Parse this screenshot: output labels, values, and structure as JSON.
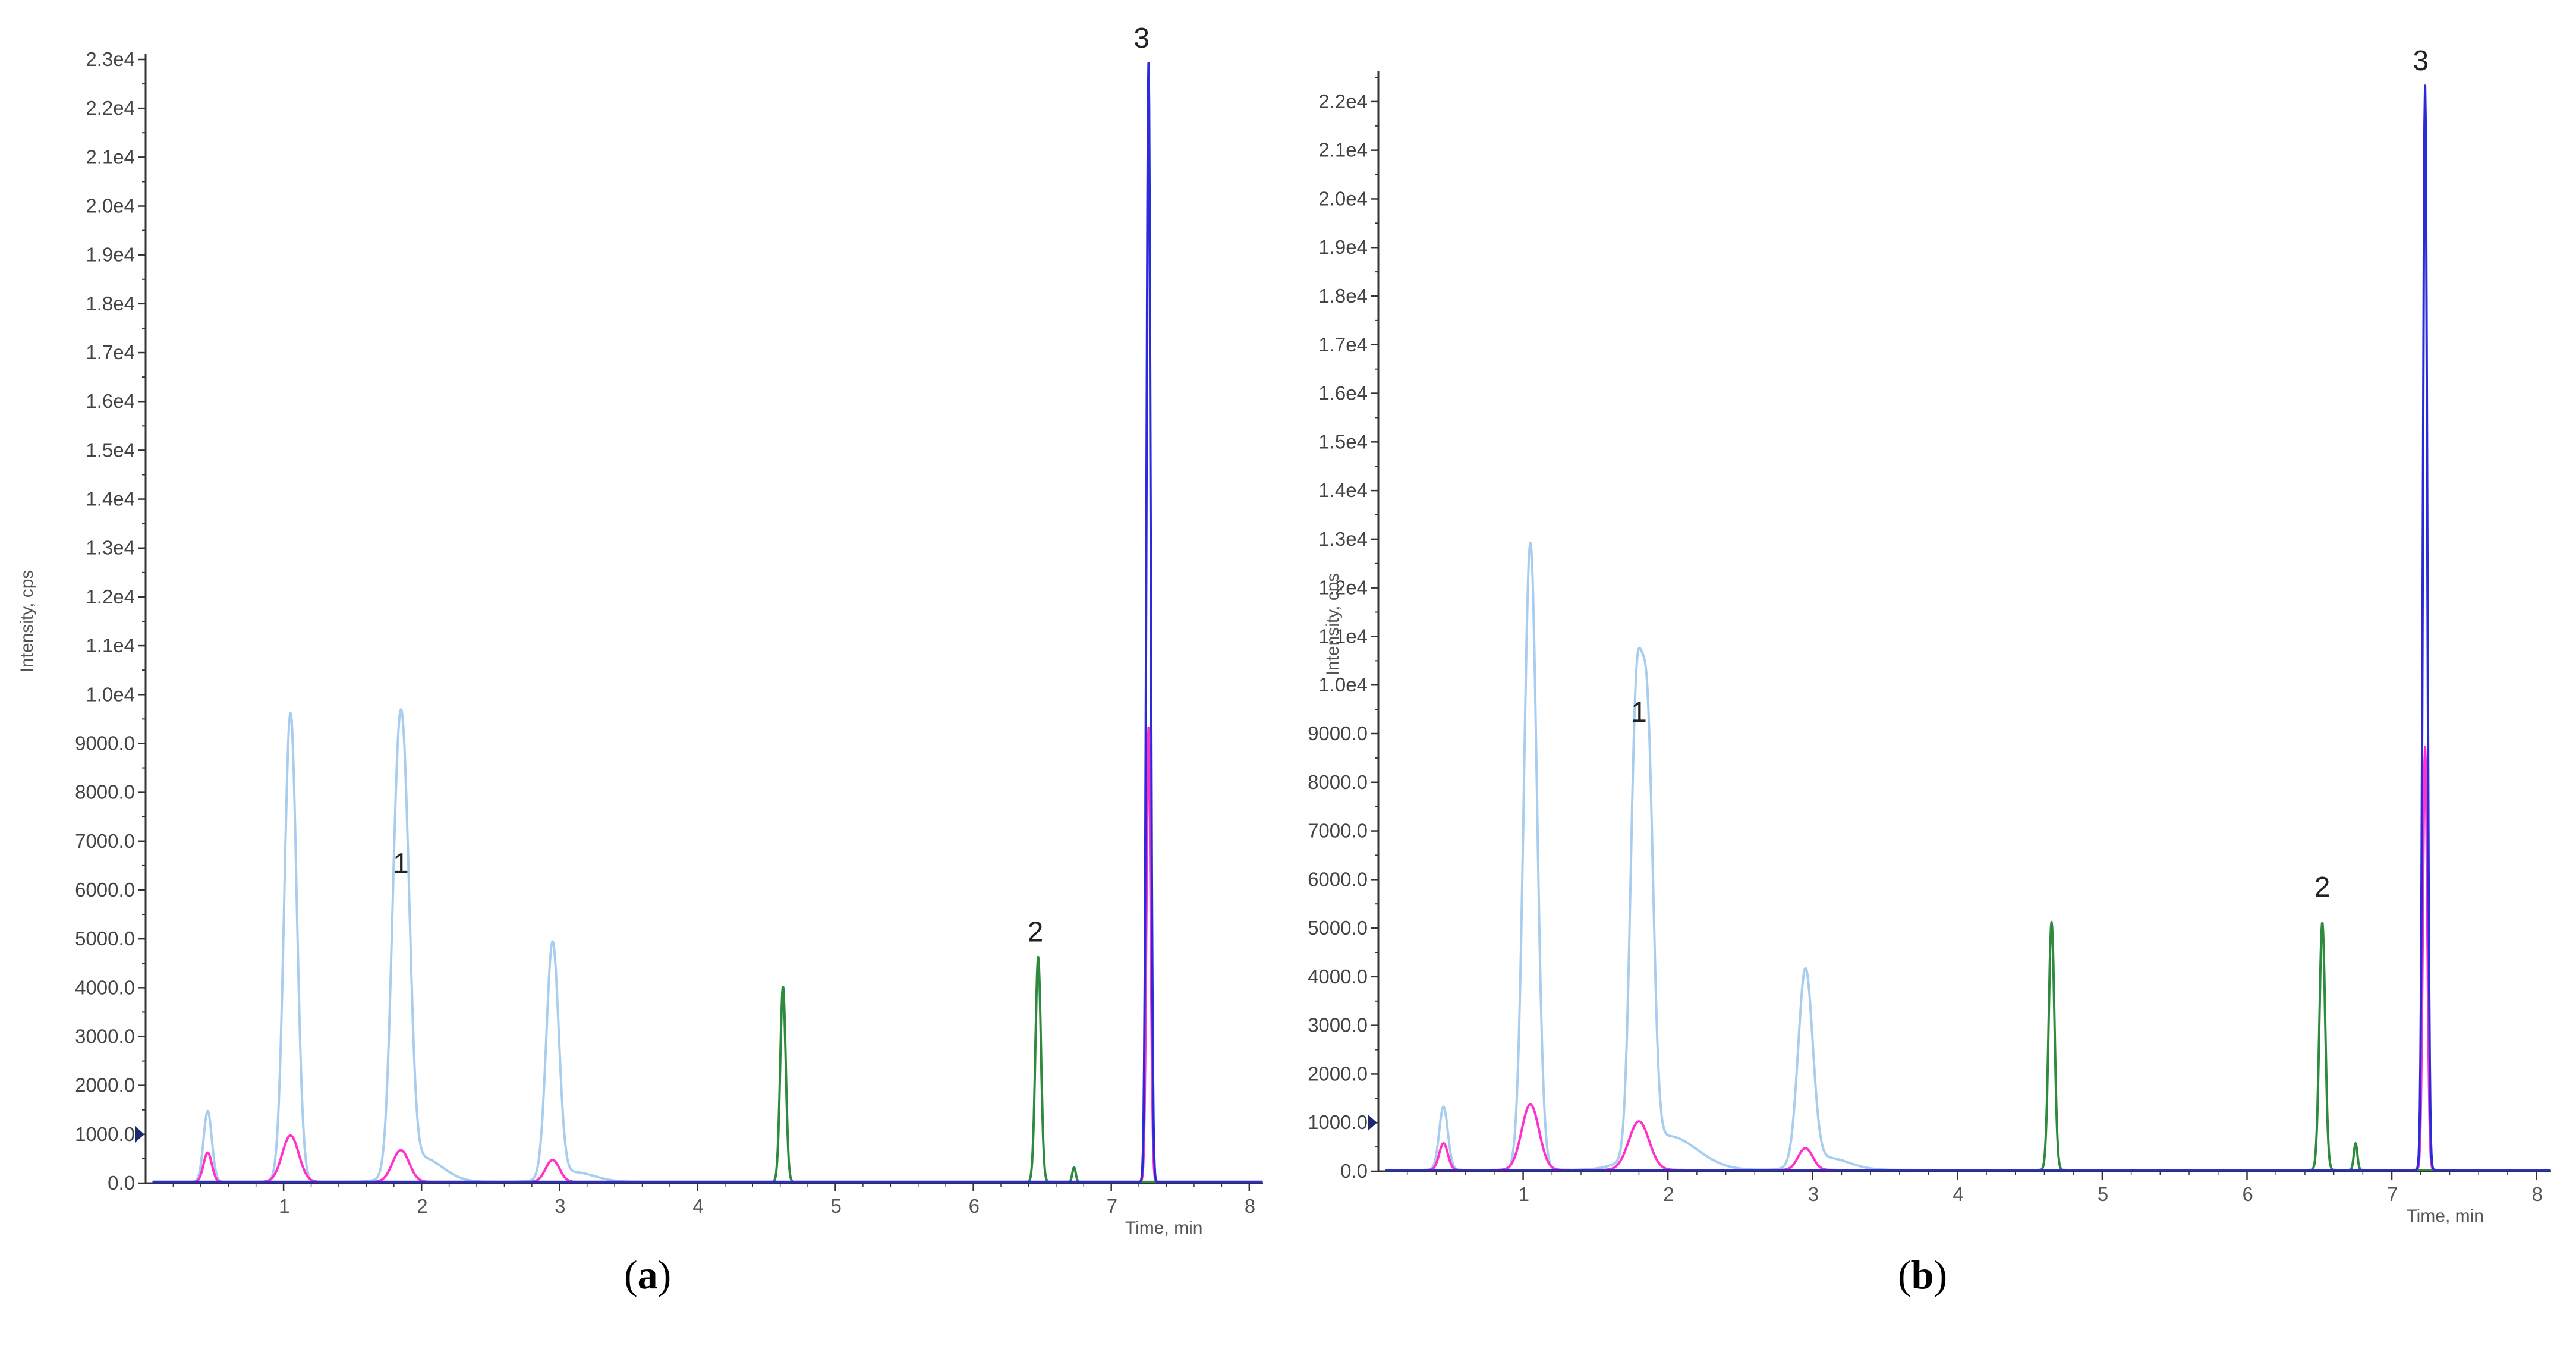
{
  "chart_data": [
    {
      "type": "line",
      "panel_label_pre": "(",
      "panel_label": "a",
      "panel_label_post": ")",
      "xlabel": "Time, min",
      "ylabel": "Intensity, cps",
      "xlim": [
        0,
        8.1
      ],
      "ylim": [
        0,
        23000
      ],
      "x_ticks": [
        "1",
        "2",
        "3",
        "4",
        "5",
        "6",
        "7",
        "8"
      ],
      "x_tick_values": [
        1,
        2,
        3,
        4,
        5,
        6,
        7,
        8
      ],
      "y_ticks": [
        "0.0",
        "1000.0",
        "2000.0",
        "3000.0",
        "4000.0",
        "5000.0",
        "6000.0",
        "7000.0",
        "8000.0",
        "9000.0",
        "1.0e4",
        "1.1e4",
        "1.2e4",
        "1.3e4",
        "1.4e4",
        "1.5e4",
        "1.6e4",
        "1.7e4",
        "1.8e4",
        "1.9e4",
        "2.0e4",
        "2.1e4",
        "2.2e4",
        "2.3e4"
      ],
      "y_tick_values": [
        0,
        1000,
        2000,
        3000,
        4000,
        5000,
        6000,
        7000,
        8000,
        9000,
        10000,
        11000,
        12000,
        13000,
        14000,
        15000,
        16000,
        17000,
        18000,
        19000,
        20000,
        21000,
        22000,
        23000
      ],
      "series": [
        {
          "color": "#a9cdee",
          "peaks": [
            {
              "x": 0.45,
              "y": 1450,
              "w": 0.03
            },
            {
              "x": 1.05,
              "y": 9600,
              "w": 0.045
            },
            {
              "x": 1.82,
              "y": 5800,
              "w": 0.045
            },
            {
              "x": 1.88,
              "y": 5900,
              "w": 0.045
            },
            {
              "x": 2.0,
              "y": 500,
              "w": 0.15
            },
            {
              "x": 2.95,
              "y": 4800,
              "w": 0.045
            },
            {
              "x": 3.1,
              "y": 200,
              "w": 0.15
            }
          ]
        },
        {
          "color": "#ff33cc",
          "peaks": [
            {
              "x": 0.45,
              "y": 600,
              "w": 0.03
            },
            {
              "x": 1.05,
              "y": 950,
              "w": 0.06
            },
            {
              "x": 1.85,
              "y": 650,
              "w": 0.06
            },
            {
              "x": 2.95,
              "y": 450,
              "w": 0.05
            },
            {
              "x": 7.27,
              "y": 9300,
              "w": 0.015
            }
          ]
        },
        {
          "color": "#2e8b3e",
          "peaks": [
            {
              "x": 4.62,
              "y": 4000,
              "w": 0.02
            },
            {
              "x": 6.47,
              "y": 4600,
              "w": 0.02
            },
            {
              "x": 6.73,
              "y": 300,
              "w": 0.012
            }
          ]
        },
        {
          "color": "#2b2bdb",
          "peaks": [
            {
              "x": 7.27,
              "y": 22900,
              "w": 0.015
            }
          ]
        }
      ],
      "annotations": [
        {
          "text": "1",
          "x": 1.85,
          "y": 6200
        },
        {
          "text": "2",
          "x": 6.45,
          "y": 4800
        },
        {
          "text": "3",
          "x": 7.22,
          "y": 23100
        }
      ]
    },
    {
      "type": "line",
      "panel_label_pre": "(",
      "panel_label": "b",
      "panel_label_post": ")",
      "xlabel": "Time, min",
      "ylabel": "Intensity, cps",
      "xlim": [
        0,
        8.1
      ],
      "ylim": [
        0,
        22500
      ],
      "x_ticks": [
        "1",
        "2",
        "3",
        "4",
        "5",
        "6",
        "7",
        "8"
      ],
      "x_tick_values": [
        1,
        2,
        3,
        4,
        5,
        6,
        7,
        8
      ],
      "y_ticks": [
        "0.0",
        "1000.0",
        "2000.0",
        "3000.0",
        "4000.0",
        "5000.0",
        "6000.0",
        "7000.0",
        "8000.0",
        "9000.0",
        "1.0e4",
        "1.1e4",
        "1.2e4",
        "1.3e4",
        "1.4e4",
        "1.5e4",
        "1.6e4",
        "1.7e4",
        "1.8e4",
        "1.9e4",
        "2.0e4",
        "2.1e4",
        "2.2e4"
      ],
      "y_tick_values": [
        0,
        1000,
        2000,
        3000,
        4000,
        5000,
        6000,
        7000,
        8000,
        9000,
        10000,
        11000,
        12000,
        13000,
        14000,
        15000,
        16000,
        17000,
        18000,
        19000,
        20000,
        21000,
        22000
      ],
      "series": [
        {
          "color": "#a9cdee",
          "peaks": [
            {
              "x": 0.45,
              "y": 1300,
              "w": 0.03
            },
            {
              "x": 1.05,
              "y": 12900,
              "w": 0.045
            },
            {
              "x": 1.78,
              "y": 8700,
              "w": 0.04
            },
            {
              "x": 1.86,
              "y": 8100,
              "w": 0.04
            },
            {
              "x": 2.0,
              "y": 700,
              "w": 0.2
            },
            {
              "x": 2.95,
              "y": 4000,
              "w": 0.05
            },
            {
              "x": 3.1,
              "y": 250,
              "w": 0.15
            }
          ]
        },
        {
          "color": "#ff33cc",
          "peaks": [
            {
              "x": 0.45,
              "y": 550,
              "w": 0.03
            },
            {
              "x": 1.05,
              "y": 1350,
              "w": 0.06
            },
            {
              "x": 1.8,
              "y": 1000,
              "w": 0.07
            },
            {
              "x": 2.95,
              "y": 450,
              "w": 0.05
            },
            {
              "x": 7.23,
              "y": 8700,
              "w": 0.015
            }
          ]
        },
        {
          "color": "#2e8b3e",
          "peaks": [
            {
              "x": 4.65,
              "y": 5100,
              "w": 0.02
            },
            {
              "x": 6.52,
              "y": 5100,
              "w": 0.02
            },
            {
              "x": 6.75,
              "y": 550,
              "w": 0.012
            }
          ]
        },
        {
          "color": "#2b2bdb",
          "peaks": [
            {
              "x": 7.23,
              "y": 22300,
              "w": 0.015
            }
          ]
        }
      ],
      "annotations": [
        {
          "text": "1",
          "x": 1.8,
          "y": 9100
        },
        {
          "text": "2",
          "x": 6.52,
          "y": 5500
        },
        {
          "text": "3",
          "x": 7.2,
          "y": 22500
        }
      ]
    }
  ]
}
